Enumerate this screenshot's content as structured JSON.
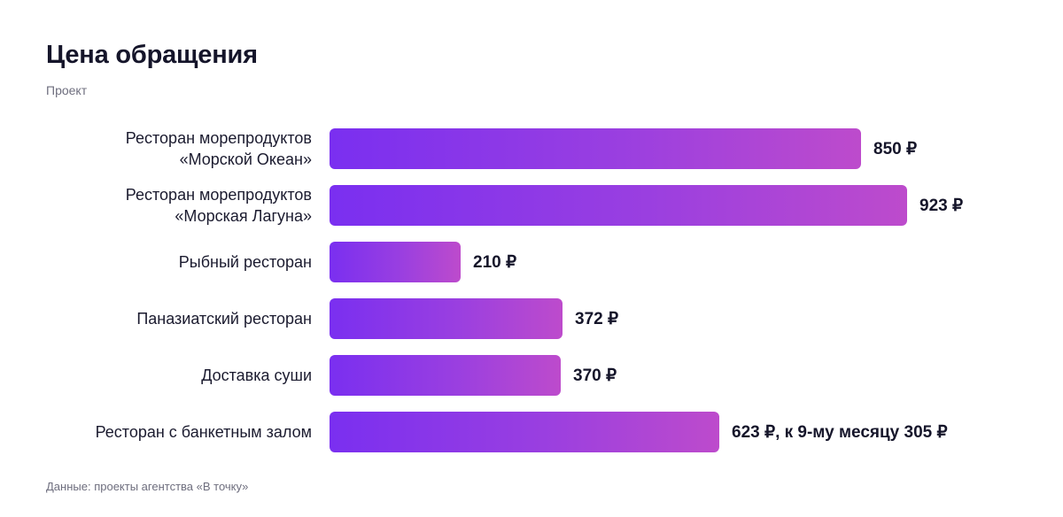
{
  "header": {
    "title": "Цена обращения",
    "subtitle": "Проект"
  },
  "footer": {
    "source": "Данные: проекты агентства «В точку»"
  },
  "colors": {
    "bar_gradient_start": "#7a2ff0",
    "bar_gradient_end": "#bd4bcc",
    "text": "#1b1b2f",
    "muted": "#6e6e7e"
  },
  "chart_data": {
    "type": "bar",
    "orientation": "horizontal",
    "title": "Цена обращения",
    "subtitle": "Проект",
    "xlabel": "",
    "ylabel": "",
    "unit": "₽",
    "grid": false,
    "categories": [
      "Ресторан морепродуктов\n«Морской Океан»",
      "Ресторан морепродуктов\n«Морская Лагуна»",
      "Рыбный ресторан",
      "Паназиатский ресторан",
      "Доставка суши",
      "Ресторан с банкетным залом"
    ],
    "values": [
      850,
      923,
      210,
      372,
      370,
      623
    ],
    "value_labels": [
      "850 ₽",
      "923 ₽",
      "210 ₽",
      "372 ₽",
      "370 ₽",
      "623 ₽, к 9-му месяцу 305 ₽"
    ],
    "xlim": [
      0,
      923
    ]
  }
}
